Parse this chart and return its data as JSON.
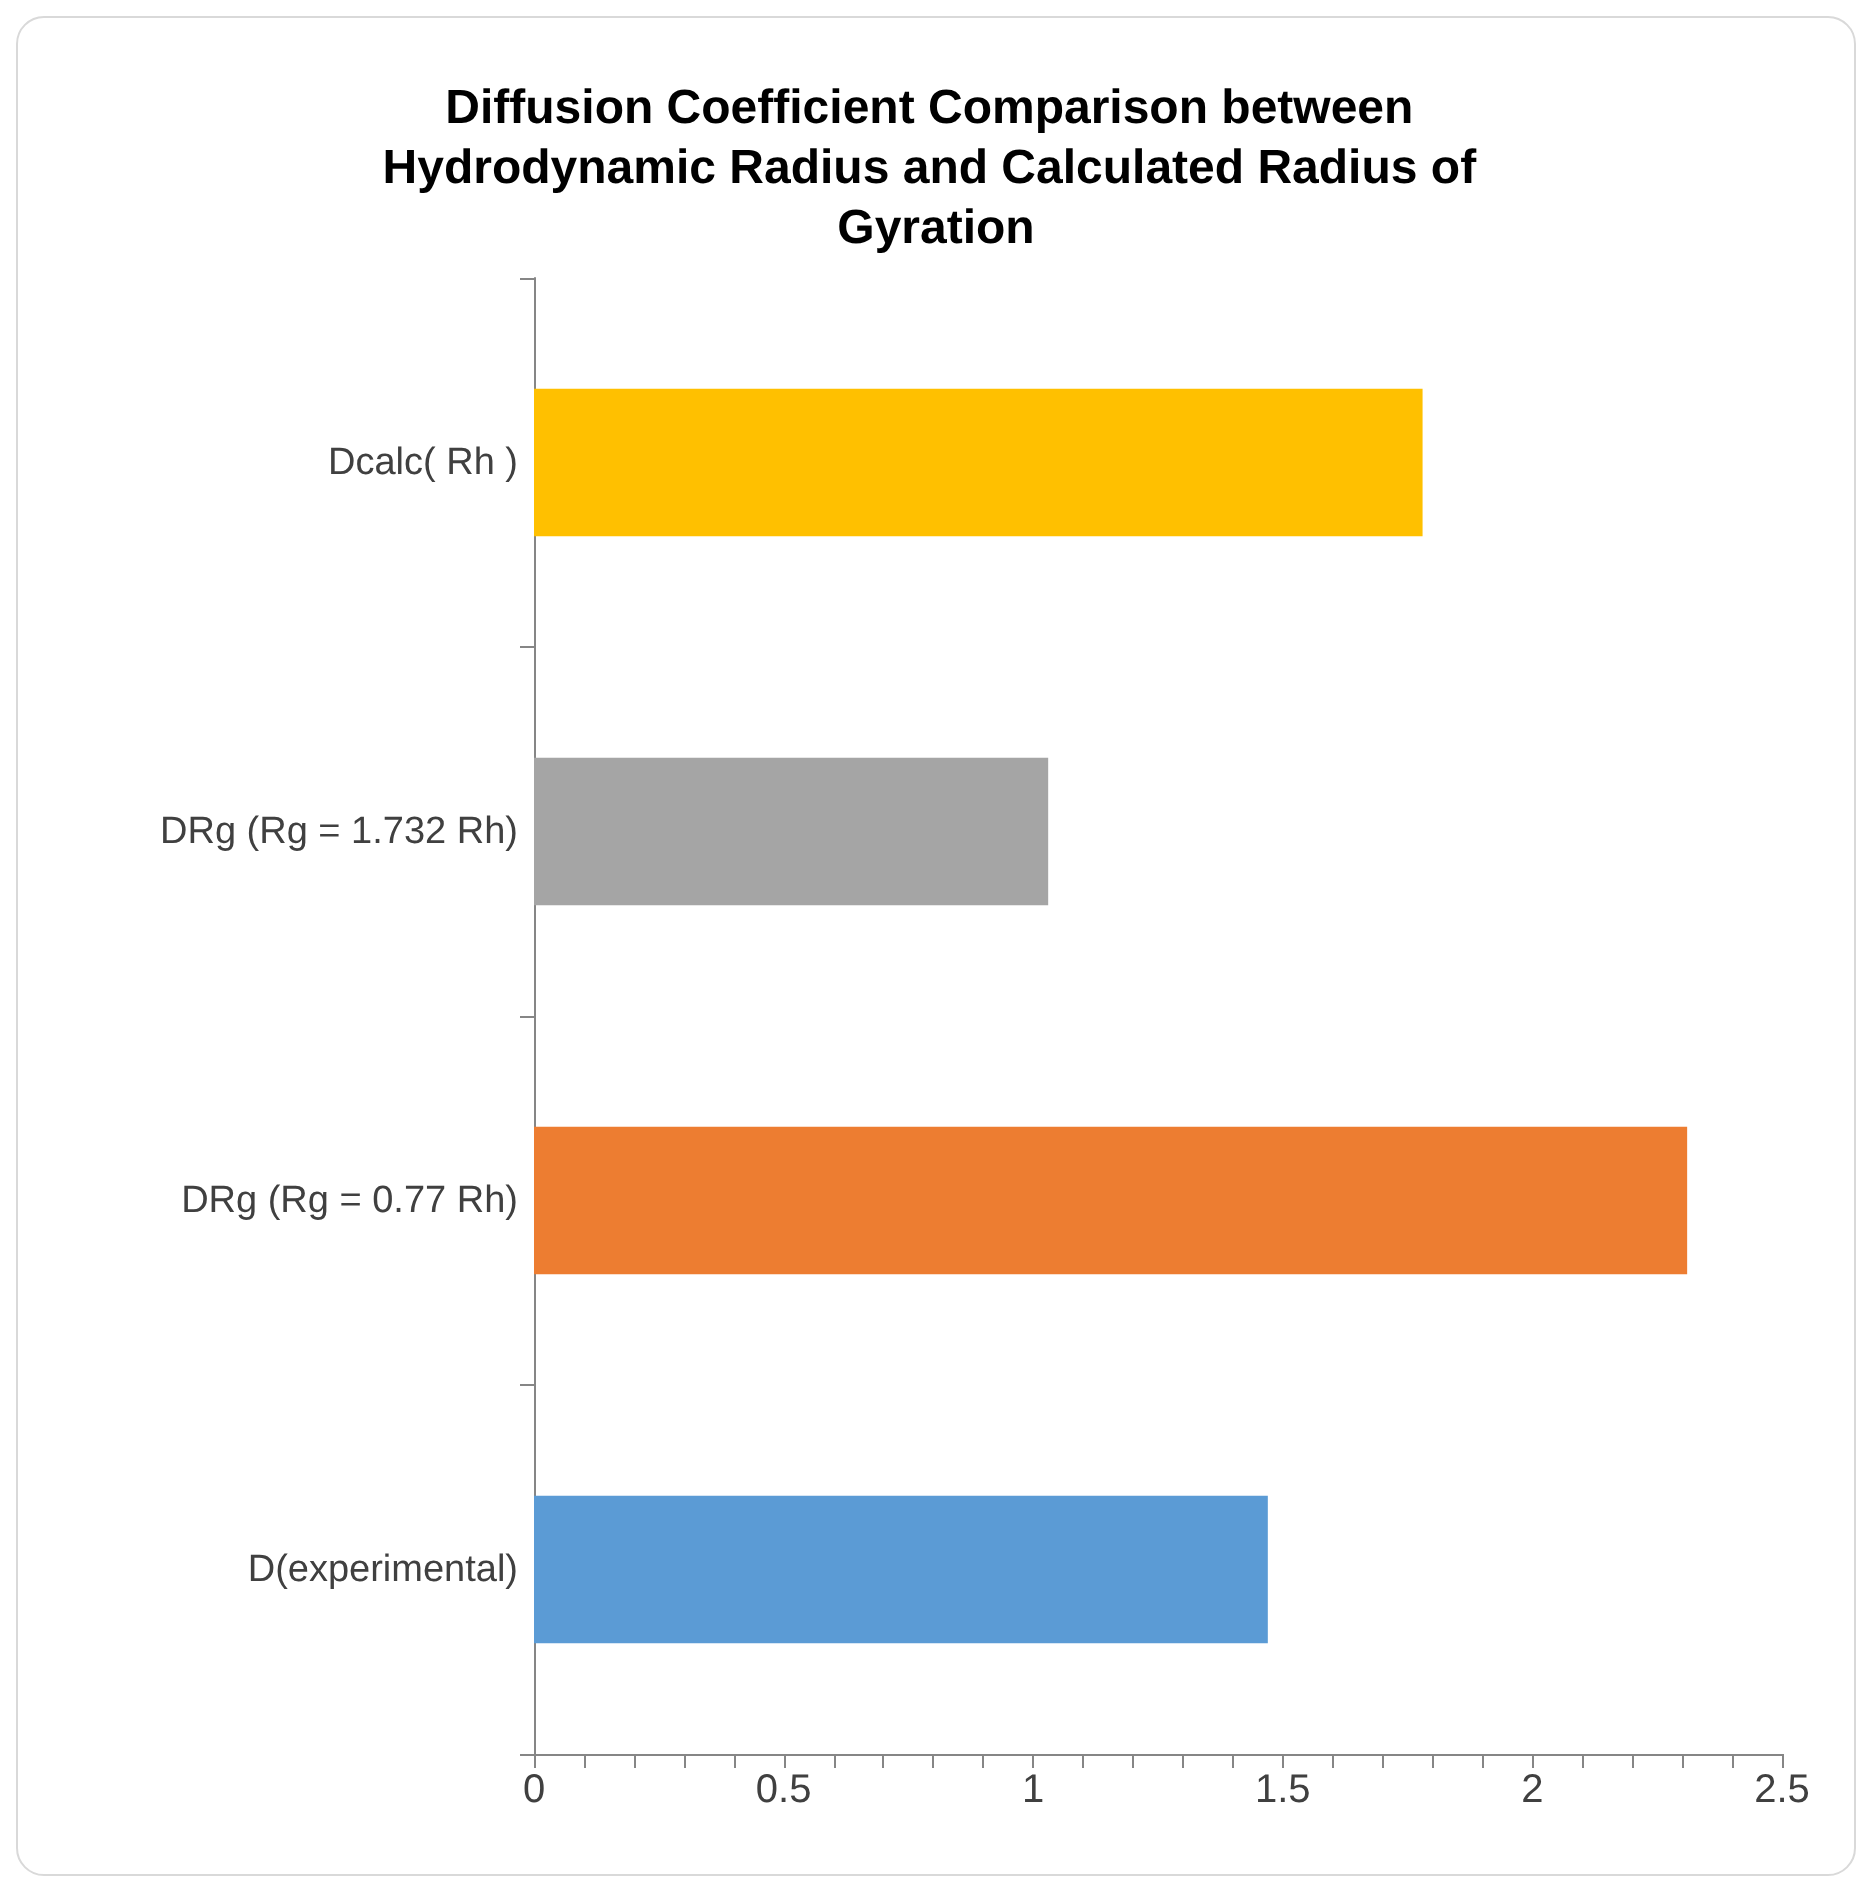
{
  "chart_data": {
    "type": "bar",
    "orientation": "horizontal",
    "title": "Diffusion Coefficient Comparison between Hydrodynamic Radius and Calculated Radius of Gyration",
    "categories": [
      "Dcalc( Rh )",
      "DRg (Rg = 1.732 Rh)",
      "DRg (Rg = 0.77 Rh)",
      "D(experimental)"
    ],
    "values": [
      1.78,
      1.03,
      2.31,
      1.47
    ],
    "colors": [
      "#ffc000",
      "#a5a5a5",
      "#ed7d31",
      "#5b9bd5"
    ],
    "xlim": [
      0,
      2.5
    ],
    "xticks": [
      0,
      {
        "value": 0.1,
        "label": null
      },
      {
        "value": 0.2,
        "label": null
      },
      {
        "value": 0.3,
        "label": null
      },
      {
        "value": 0.4,
        "label": null
      },
      0.5,
      {
        "value": 0.6,
        "label": null
      },
      {
        "value": 0.7,
        "label": null
      },
      {
        "value": 0.8,
        "label": null
      },
      {
        "value": 0.9,
        "label": null
      },
      1,
      {
        "value": 1.1,
        "label": null
      },
      {
        "value": 1.2,
        "label": null
      },
      {
        "value": 1.3,
        "label": null
      },
      {
        "value": 1.4,
        "label": null
      },
      1.5,
      {
        "value": 1.6,
        "label": null
      },
      {
        "value": 1.7,
        "label": null
      },
      {
        "value": 1.8,
        "label": null
      },
      {
        "value": 1.9,
        "label": null
      },
      2,
      {
        "value": 2.1,
        "label": null
      },
      {
        "value": 2.2,
        "label": null
      },
      {
        "value": 2.3,
        "label": null
      },
      {
        "value": 2.4,
        "label": null
      },
      2.5
    ],
    "grid": false
  }
}
